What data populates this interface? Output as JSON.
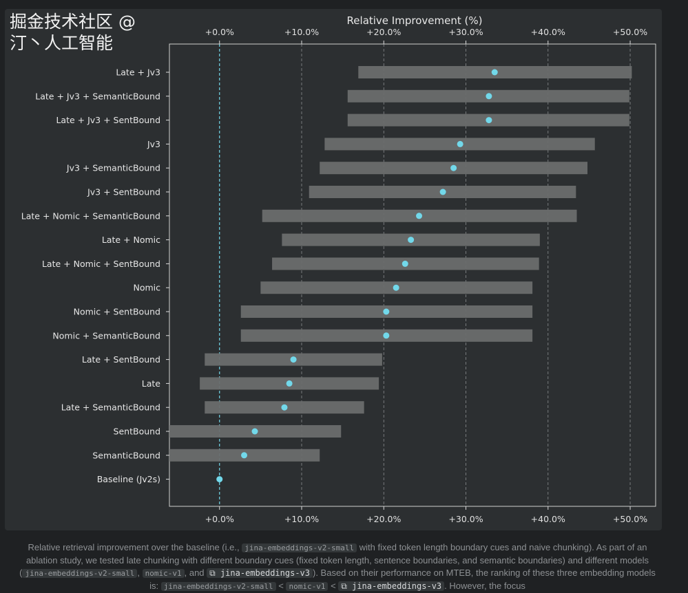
{
  "chart_data": {
    "type": "bar",
    "subtype": "range-with-point (horizontal)",
    "title": "",
    "xlabel": "Relative Improvement (%)",
    "ylabel": "",
    "xlim": [
      -6.1,
      53.1
    ],
    "xticks": [
      0,
      10,
      20,
      30,
      40,
      50
    ],
    "xtick_labels": [
      "+0.0%",
      "+10.0%",
      "+20.0%",
      "+30.0%",
      "+40.0%",
      "+50.0%"
    ],
    "grid": "vertical dashed",
    "baseline_line": 0,
    "colors": {
      "bar": "#6a6d6d",
      "point": "#72d8ea",
      "baseline": "#72d8ea"
    },
    "categories": [
      "Late + Jv3",
      "Late + Jv3 + SemanticBound",
      "Late + Jv3 + SentBound",
      "Jv3",
      "Jv3 + SemanticBound",
      "Jv3 + SentBound",
      "Late + Nomic + SemanticBound",
      "Late + Nomic",
      "Late + Nomic + SentBound",
      "Nomic",
      "Nomic + SentBound",
      "Nomic + SemanticBound",
      "Late + SentBound",
      "Late",
      "Late + SemanticBound",
      "SentBound",
      "SemanticBound",
      "Baseline (Jv2s)"
    ],
    "range_low": [
      16.9,
      15.6,
      15.6,
      12.8,
      12.2,
      10.9,
      5.2,
      7.6,
      6.4,
      5.0,
      2.6,
      2.6,
      -1.8,
      -2.4,
      -1.8,
      -6.1,
      -6.1,
      null
    ],
    "range_high": [
      50.2,
      49.9,
      49.9,
      45.7,
      44.8,
      43.4,
      43.5,
      39.0,
      38.9,
      38.1,
      38.1,
      38.1,
      19.8,
      19.4,
      17.6,
      14.8,
      12.2,
      null
    ],
    "values": [
      33.5,
      32.8,
      32.8,
      29.3,
      28.5,
      27.2,
      24.3,
      23.3,
      22.6,
      21.5,
      20.3,
      20.3,
      9.0,
      8.5,
      7.9,
      4.3,
      3.0,
      0.0
    ]
  },
  "caption": {
    "t1": "Relative retrieval improvement over the baseline (i.e., ",
    "c1": "jina-embeddings-v2-small",
    "t2": " with fixed token length boundary cues and naive chunking). As part of an ablation study, we tested late chunking with different boundary cues (fixed token length, sentence boundaries, and semantic boundaries) and different models (",
    "c2": "jina-embeddings-v2-small",
    "t3": ", ",
    "c3": "nomic-v1",
    "t4": ", and ",
    "c4": "jina-embeddings-v3",
    "t5": "). Based on their performance on MTEB, the ranking of these three embedding models is: ",
    "c5": "jina-embeddings-v2-small",
    "t6": " < ",
    "c6": "nomic-v1",
    "t7": " < ",
    "c7": "jina-embeddings-v3",
    "t8": ". However, the focus",
    "link_icon": "external-link-icon"
  },
  "watermark": "掘金技术社区 @ 汀丶人工智能"
}
